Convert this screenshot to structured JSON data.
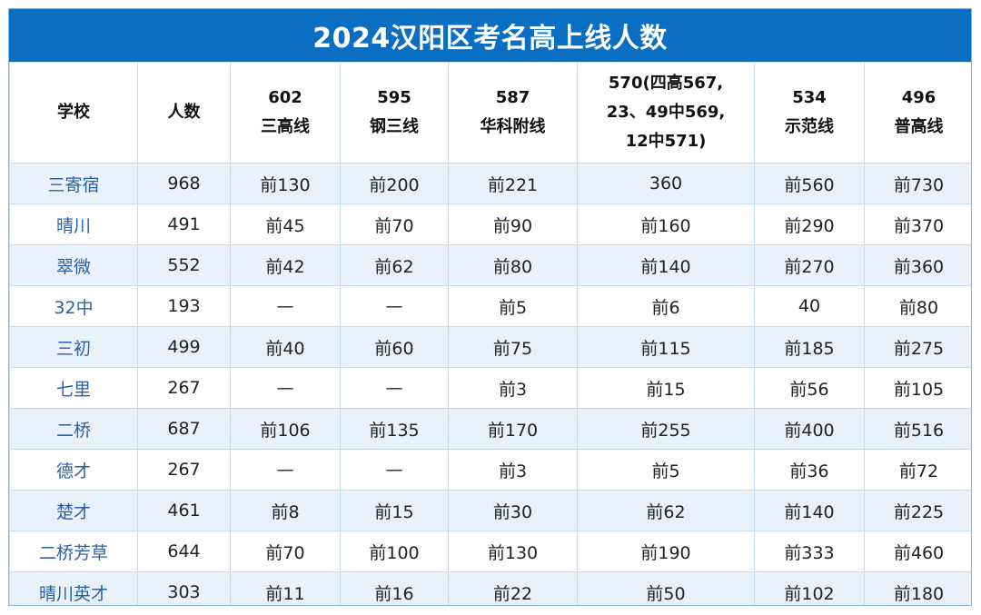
{
  "title": "2024汉阳区考名高上线人数",
  "headers": [
    {
      "line1": "学校",
      "line2": "",
      "line3": ""
    },
    {
      "line1": "人数",
      "line2": "",
      "line3": ""
    },
    {
      "line1": "602",
      "line2": "三高线",
      "line3": ""
    },
    {
      "line1": "595",
      "line2": "钢三线",
      "line3": ""
    },
    {
      "line1": "587",
      "line2": "华科附线",
      "line3": ""
    },
    {
      "line1": "570(四高567,",
      "line2": "23、49中569,",
      "line3": "12中571)"
    },
    {
      "line1": "534",
      "line2": "示范线",
      "line3": ""
    },
    {
      "line1": "496",
      "line2": "普高线",
      "line3": ""
    }
  ],
  "rows": [
    [
      "三寄宿",
      "968",
      "前130",
      "前200",
      "前221",
      "360",
      "前560",
      "前730"
    ],
    [
      "晴川",
      "491",
      "前45",
      "前70",
      "前90",
      "前160",
      "前290",
      "前370"
    ],
    [
      "翠微",
      "552",
      "前42",
      "前62",
      "前80",
      "前140",
      "前270",
      "前360"
    ],
    [
      "32中",
      "193",
      "—",
      "—",
      "前5",
      "前6",
      "40",
      "前80"
    ],
    [
      "三初",
      "499",
      "前40",
      "前60",
      "前75",
      "前115",
      "前185",
      "前275"
    ],
    [
      "七里",
      "267",
      "—",
      "—",
      "前3",
      "前15",
      "前56",
      "前105"
    ],
    [
      "二桥",
      "687",
      "前106",
      "前135",
      "前170",
      "前255",
      "前400",
      "前516"
    ],
    [
      "德才",
      "267",
      "—",
      "—",
      "前3",
      "前5",
      "前36",
      "前72"
    ],
    [
      "楚才",
      "461",
      "前8",
      "前15",
      "前30",
      "前62",
      "前140",
      "前225"
    ],
    [
      "二桥芳草",
      "644",
      "前70",
      "前100",
      "前130",
      "前190",
      "前333",
      "前460"
    ],
    [
      "晴川英才",
      "303",
      "前11",
      "前16",
      "前22",
      "前50",
      "前102",
      "前180"
    ]
  ],
  "colors": {
    "title_background": "#0a6fc2",
    "stripe_row": "#e9f1fa",
    "school_text": "#2a5fa8",
    "grid_line": "#c9dced"
  }
}
